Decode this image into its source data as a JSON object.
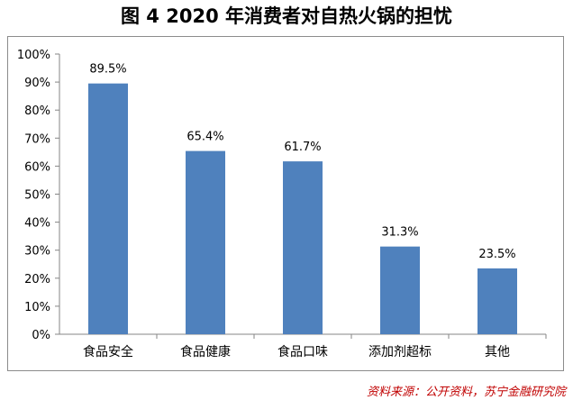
{
  "title": "图 4  2020 年消费者对自热火锅的担忧",
  "source": "资料来源：公开资料，苏宁金融研究院",
  "colors": {
    "bar": "#4F81BD",
    "source_text": "#C00000",
    "axis": "#868686"
  },
  "chart_data": {
    "type": "bar",
    "categories": [
      "食品安全",
      "食品健康",
      "食品口味",
      "添加剂超标",
      "其他"
    ],
    "values": [
      89.5,
      65.4,
      61.7,
      31.3,
      23.5
    ],
    "value_labels": [
      "89.5%",
      "65.4%",
      "61.7%",
      "31.3%",
      "23.5%"
    ],
    "y_ticks": [
      "0%",
      "10%",
      "20%",
      "30%",
      "40%",
      "50%",
      "60%",
      "70%",
      "80%",
      "90%",
      "100%"
    ],
    "ylim": [
      0,
      100
    ],
    "grid": false,
    "legend": "none"
  }
}
